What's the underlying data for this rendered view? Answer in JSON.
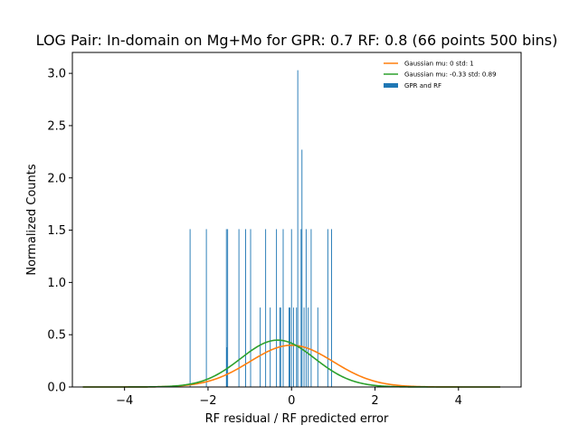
{
  "chart_data": {
    "type": "histogram",
    "title": "LOG Pair: In-domain on Mg+Mo for GPR: 0.7 RF: 0.8 (66 points 500 bins)",
    "xlabel": "RF residual / RF predicted error",
    "ylabel": "Normalized Counts",
    "xlim": [
      -5.25,
      5.5
    ],
    "ylim": [
      0,
      3.2
    ],
    "xticks": [
      -4,
      -2,
      0,
      2,
      4
    ],
    "xtick_labels": [
      "−4",
      "−2",
      "0",
      "2",
      "4"
    ],
    "yticks": [
      0.0,
      0.5,
      1.0,
      1.5,
      2.0,
      2.5,
      3.0
    ],
    "ytick_labels": [
      "0.0",
      "0.5",
      "1.0",
      "1.5",
      "2.0",
      "2.5",
      "3.0"
    ],
    "grid": false,
    "legend_position": "top-right",
    "histogram": {
      "name": "GPR and RF",
      "color": "#1f77b4",
      "bars": [
        {
          "x": -2.43,
          "y": 1.51
        },
        {
          "x": -2.04,
          "y": 1.51
        },
        {
          "x": -1.56,
          "y": 1.51
        },
        {
          "x": -1.53,
          "y": 1.51
        },
        {
          "x": -1.55,
          "y": 0.38
        },
        {
          "x": -1.26,
          "y": 1.51
        },
        {
          "x": -1.1,
          "y": 1.51
        },
        {
          "x": -0.98,
          "y": 1.51
        },
        {
          "x": -0.75,
          "y": 0.76
        },
        {
          "x": -0.62,
          "y": 1.51
        },
        {
          "x": -0.51,
          "y": 0.76
        },
        {
          "x": -0.36,
          "y": 1.51
        },
        {
          "x": -0.28,
          "y": 0.76
        },
        {
          "x": -0.26,
          "y": 0.76
        },
        {
          "x": -0.2,
          "y": 1.51
        },
        {
          "x": -0.06,
          "y": 0.76
        },
        {
          "x": -0.04,
          "y": 0.76
        },
        {
          "x": 0.0,
          "y": 1.51
        },
        {
          "x": 0.05,
          "y": 0.76
        },
        {
          "x": 0.12,
          "y": 0.76
        },
        {
          "x": 0.15,
          "y": 3.03
        },
        {
          "x": 0.23,
          "y": 1.51
        },
        {
          "x": 0.25,
          "y": 2.27
        },
        {
          "x": 0.3,
          "y": 0.76
        },
        {
          "x": 0.35,
          "y": 1.51
        },
        {
          "x": 0.4,
          "y": 0.76
        },
        {
          "x": 0.47,
          "y": 1.51
        },
        {
          "x": 0.63,
          "y": 0.76
        },
        {
          "x": 0.87,
          "y": 1.51
        },
        {
          "x": 0.96,
          "y": 1.51
        }
      ]
    },
    "series": [
      {
        "name": "Gaussian mu: 0 std: 1",
        "color": "#ff7f0e",
        "mu": 0,
        "std": 1
      },
      {
        "name": "Gaussian mu: -0.33 std: 0.89",
        "color": "#2ca02c",
        "mu": -0.33,
        "std": 0.89
      }
    ],
    "curve_x_range": [
      -5,
      5
    ]
  }
}
